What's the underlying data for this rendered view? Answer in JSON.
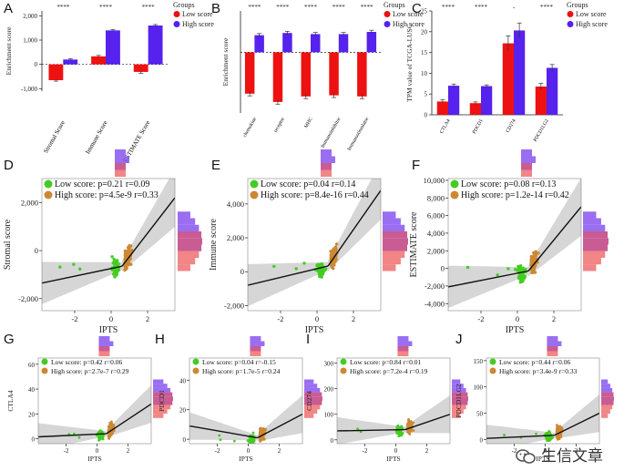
{
  "colors": {
    "low": "#ee1111",
    "high": "#5522ee",
    "low_pt": "#44cc22",
    "high_pt": "#cc8833",
    "band": "#cfcfcf",
    "fit": "#111111",
    "hist_low": "#f07070",
    "hist_high": "#8855ee",
    "hist_overlap": "#c04080"
  },
  "chart_data": [
    {
      "panel": "A",
      "type": "bar",
      "categories": [
        "Stromal Score",
        "Immune Score",
        "ESTIMATE Score"
      ],
      "series": [
        {
          "name": "Low score",
          "values": [
            -650,
            330,
            -310
          ],
          "err": [
            40,
            40,
            60
          ]
        },
        {
          "name": "High score",
          "values": [
            200,
            1400,
            1600
          ],
          "err": [
            30,
            30,
            40
          ]
        }
      ],
      "ylabel": "Enrichment score",
      "ylim": [
        -1100,
        2200
      ],
      "yticks": [
        -1000,
        0,
        1000,
        2000
      ],
      "ytick_labels": [
        "-1,000",
        "0",
        "1,000",
        "2,000"
      ],
      "significance": [
        "****",
        "****",
        "****"
      ],
      "legend_title": "Groups",
      "legend": [
        "Low score",
        "High score"
      ],
      "legend_pos": "right"
    },
    {
      "panel": "B",
      "type": "bar",
      "categories": [
        "chemokine",
        "receptor",
        "MHC",
        "Immunoinhibitor",
        "Immunostimulator"
      ],
      "series": [
        {
          "name": "Low score",
          "values": [
            -0.75,
            -0.9,
            -0.8,
            -0.78,
            -0.8
          ],
          "err": [
            0.04,
            0.04,
            0.04,
            0.04,
            0.04
          ]
        },
        {
          "name": "High score",
          "values": [
            0.31,
            0.35,
            0.33,
            0.33,
            0.37
          ],
          "err": [
            0.03,
            0.03,
            0.03,
            0.03,
            0.03
          ]
        }
      ],
      "ylabel": "Enrichment score",
      "ylim": [
        -1.1,
        0.75
      ],
      "significance": [
        "****",
        "****",
        "****",
        "****",
        "****"
      ],
      "legend_title": "Groups",
      "legend": [
        "Low score",
        "High score"
      ],
      "legend_pos": "right"
    },
    {
      "panel": "C",
      "type": "bar",
      "categories": [
        "CTLA4",
        "PDCD1",
        "CD274",
        "PDCD1LG2"
      ],
      "series": [
        {
          "name": "Low score",
          "values": [
            3.2,
            2.8,
            17.2,
            6.8
          ],
          "err": [
            0.4,
            0.3,
            1.8,
            0.8
          ]
        },
        {
          "name": "High score",
          "values": [
            7.0,
            6.9,
            20.3,
            11.3
          ],
          "err": [
            0.4,
            0.3,
            1.8,
            0.8
          ]
        }
      ],
      "ylabel": "TPM value of TCGA-LUSC",
      "ylim": [
        0,
        25
      ],
      "yticks": [
        0,
        5,
        10,
        15,
        20,
        25
      ],
      "significance": [
        "****",
        "****",
        "-",
        "****"
      ],
      "legend_title": "Groups",
      "legend": [
        "Low score",
        "High score"
      ],
      "legend_pos": "right"
    },
    {
      "panel": "D",
      "type": "scatter",
      "xlabel": "IPTS",
      "ylabel": "Stromal score",
      "xlim": [
        -3.8,
        3.5
      ],
      "ylim": [
        -2500,
        3000
      ],
      "xticks": [
        -2,
        0,
        2
      ],
      "yticks": [
        -2000,
        0,
        2000
      ],
      "legend": [
        "Low score: p=0.21 r=0.09",
        "High score: p=4.5e-9 r=0.33"
      ],
      "fit_low": [
        [
          -3.8,
          -1350
        ],
        [
          0.6,
          -650
        ]
      ],
      "fit_high": [
        [
          0.6,
          -650
        ],
        [
          3.5,
          2200
        ]
      ]
    },
    {
      "panel": "E",
      "type": "scatter",
      "xlabel": "IPTS",
      "ylabel": "Immune score",
      "xlim": [
        -3.8,
        3.5
      ],
      "ylim": [
        -2300,
        5500
      ],
      "xticks": [
        -2,
        0,
        2
      ],
      "yticks": [
        -2000,
        0,
        2000,
        4000
      ],
      "legend": [
        "Low score: p=0.04 r=0.14",
        "High score: p=8.4e-16 r=0.44"
      ],
      "fit_low": [
        [
          -3.8,
          -800
        ],
        [
          0.6,
          330
        ]
      ],
      "fit_high": [
        [
          0.6,
          330
        ],
        [
          3.5,
          4800
        ]
      ]
    },
    {
      "panel": "F",
      "type": "scatter",
      "xlabel": "IPTS",
      "ylabel": "ESTIMATE score",
      "xlim": [
        -3.8,
        3.5
      ],
      "ylim": [
        -4800,
        10200
      ],
      "xticks": [
        -2,
        0,
        2
      ],
      "yticks": [
        -4000,
        -2000,
        0,
        2000,
        4000,
        6000,
        8000,
        10000
      ],
      "legend": [
        "Low score: p=0.08 r=0.13",
        "High score: p=1.2e-14 r=0.42"
      ],
      "fit_low": [
        [
          -3.8,
          -2100
        ],
        [
          0.6,
          -300
        ]
      ],
      "fit_high": [
        [
          0.6,
          -300
        ],
        [
          3.5,
          7000
        ]
      ]
    },
    {
      "panel": "G",
      "type": "scatter",
      "xlabel": "IPTS",
      "ylabel": "CTLA4",
      "xlim": [
        -3.8,
        3.5
      ],
      "ylim": [
        -4,
        65
      ],
      "xticks": [
        -2,
        0,
        2
      ],
      "yticks": [
        0,
        20,
        40,
        60
      ],
      "legend": [
        "Low score: p=0.42 r=0.06",
        "High score: p=2.7e-7 r=0.29"
      ],
      "fit_low": [
        [
          -3.8,
          1.5
        ],
        [
          0.6,
          4
        ]
      ],
      "fit_high": [
        [
          0.6,
          4
        ],
        [
          3.5,
          28
        ]
      ]
    },
    {
      "panel": "H",
      "type": "scatter",
      "xlabel": "IPTS",
      "ylabel": "PDCD1",
      "xlim": [
        -3.8,
        3.5
      ],
      "ylim": [
        -3,
        55
      ],
      "xticks": [
        -2,
        0,
        2
      ],
      "yticks": [
        0,
        20,
        40
      ],
      "legend": [
        "Low score: p=0.04 r=-0.15",
        "High score: p=1.7e-5 r=0.24"
      ],
      "fit_low": [
        [
          -3.8,
          9
        ],
        [
          0.6,
          1
        ]
      ],
      "fit_high": [
        [
          0.6,
          1
        ],
        [
          3.5,
          17
        ]
      ]
    },
    {
      "panel": "I",
      "type": "scatter",
      "xlabel": "IPTS",
      "ylabel": "CD274",
      "xlim": [
        -3.8,
        3.5
      ],
      "ylim": [
        -15,
        320
      ],
      "xticks": [
        -2,
        0,
        2
      ],
      "yticks": [
        0,
        100,
        200,
        300
      ],
      "legend": [
        "Low score: p=0.84 r=0.01",
        "High score: p=7.2e-4 r=0.19"
      ],
      "fit_low": [
        [
          -3.8,
          35
        ],
        [
          0.6,
          40
        ]
      ],
      "fit_high": [
        [
          0.6,
          40
        ],
        [
          3.5,
          100
        ]
      ]
    },
    {
      "panel": "J",
      "type": "scatter",
      "xlabel": "IPTS",
      "ylabel": "PDCD1LG2",
      "xlim": [
        -3.8,
        3.5
      ],
      "ylim": [
        -8,
        155
      ],
      "xticks": [
        -2,
        0,
        2
      ],
      "yticks": [
        0,
        50,
        100,
        150
      ],
      "legend": [
        "Low score: p=0.44 r=0.06",
        "High score: p=3.4e-9 r=0.33"
      ],
      "fit_low": [
        [
          -3.8,
          2
        ],
        [
          0.6,
          8
        ]
      ],
      "fit_high": [
        [
          0.6,
          8
        ],
        [
          3.5,
          50
        ]
      ]
    }
  ],
  "watermark": "生信文章"
}
